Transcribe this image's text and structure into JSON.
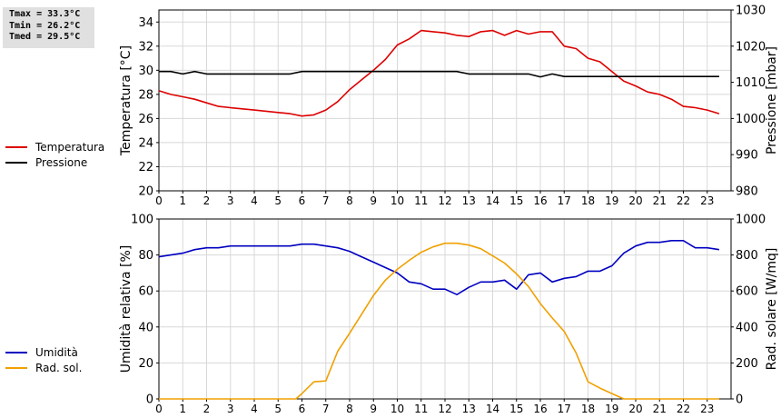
{
  "stats": {
    "tmax": "Tmax = 33.3°C",
    "tmin": "Tmin = 26.2°C",
    "tmed": "Tmed = 29.5°C"
  },
  "legend_top": [
    {
      "label": "Temperatura",
      "color": "#dd0000"
    },
    {
      "label": "Pressione",
      "color": "#000000"
    }
  ],
  "legend_bottom": [
    {
      "label": "Umidità",
      "color": "#0000c0"
    },
    {
      "label": "Rad. sol.",
      "color": "#f0a000"
    }
  ],
  "chart_data": [
    {
      "type": "line",
      "ylabel": "Temperatura [°C]",
      "y2label": "Pressione [mbar]",
      "xlim": [
        0,
        24
      ],
      "xticks": [
        0,
        1,
        2,
        3,
        4,
        5,
        6,
        7,
        8,
        9,
        10,
        11,
        12,
        13,
        14,
        15,
        16,
        17,
        18,
        19,
        20,
        21,
        22,
        23
      ],
      "ylim": [
        20,
        35
      ],
      "yticks": [
        20,
        22,
        24,
        26,
        28,
        30,
        32,
        34
      ],
      "y2lim": [
        980,
        1030
      ],
      "y2ticks": [
        980,
        990,
        1000,
        1010,
        1020,
        1030
      ],
      "grid": true,
      "series": [
        {
          "name": "Temperatura",
          "axis": "left",
          "color": "#dd0000",
          "x": [
            0,
            0.5,
            1,
            1.5,
            2,
            2.5,
            3,
            3.5,
            4,
            4.5,
            5,
            5.5,
            6,
            6.5,
            7,
            7.5,
            8,
            8.5,
            9,
            9.5,
            10,
            10.5,
            11,
            11.5,
            12,
            12.5,
            13,
            13.5,
            14,
            14.5,
            15,
            15.5,
            16,
            16.5,
            17,
            17.5,
            18,
            18.5,
            19,
            19.5,
            20,
            20.5,
            21,
            21.5,
            22,
            22.5,
            23,
            23.5
          ],
          "y": [
            28.3,
            28.0,
            27.8,
            27.6,
            27.3,
            27.0,
            26.9,
            26.8,
            26.7,
            26.6,
            26.5,
            26.4,
            26.2,
            26.3,
            26.7,
            27.4,
            28.4,
            29.2,
            30.0,
            30.9,
            32.1,
            32.6,
            33.3,
            33.2,
            33.1,
            32.9,
            32.8,
            33.2,
            33.3,
            32.9,
            33.3,
            33.0,
            33.2,
            33.2,
            32.0,
            31.8,
            31.0,
            30.7,
            29.9,
            29.1,
            28.7,
            28.2,
            28.0,
            27.6,
            27.0,
            26.9,
            26.7,
            26.4
          ]
        },
        {
          "name": "Pressione",
          "axis": "right",
          "color": "#000000",
          "x": [
            0,
            0.5,
            1,
            1.5,
            2,
            2.5,
            3,
            3.5,
            4,
            4.5,
            5,
            5.5,
            6,
            6.5,
            7,
            7.5,
            8,
            8.5,
            9,
            9.5,
            10,
            10.5,
            11,
            11.5,
            12,
            12.5,
            13,
            13.5,
            14,
            14.5,
            15,
            15.5,
            16,
            16.5,
            17,
            17.5,
            18,
            18.5,
            19,
            19.5,
            20,
            20.5,
            21,
            21.5,
            22,
            22.5,
            23,
            23.5
          ],
          "y": [
            1013,
            1013,
            1012.3,
            1013,
            1012.3,
            1012.3,
            1012.3,
            1012.3,
            1012.3,
            1012.3,
            1012.3,
            1012.3,
            1013,
            1013,
            1013,
            1013,
            1013,
            1013,
            1013,
            1013,
            1013,
            1013,
            1013,
            1013,
            1013,
            1013,
            1012.3,
            1012.3,
            1012.3,
            1012.3,
            1012.3,
            1012.3,
            1011.5,
            1012.3,
            1011.6,
            1011.6,
            1011.6,
            1011.6,
            1011.6,
            1011.6,
            1011.6,
            1011.6,
            1011.6,
            1011.6,
            1011.6,
            1011.6,
            1011.6,
            1011.6
          ]
        }
      ]
    },
    {
      "type": "line",
      "ylabel": "Umidità relativa [%]",
      "y2label": "Rad. solare [W/mq]",
      "xlim": [
        0,
        24
      ],
      "xticks": [
        0,
        1,
        2,
        3,
        4,
        5,
        6,
        7,
        8,
        9,
        10,
        11,
        12,
        13,
        14,
        15,
        16,
        17,
        18,
        19,
        20,
        21,
        22,
        23
      ],
      "ylim": [
        0,
        100
      ],
      "yticks": [
        0,
        20,
        40,
        60,
        80,
        100
      ],
      "y2lim": [
        0,
        1000
      ],
      "y2ticks": [
        0,
        200,
        400,
        600,
        800,
        1000
      ],
      "grid": true,
      "series": [
        {
          "name": "Umidità",
          "axis": "left",
          "color": "#0000c0",
          "x": [
            0,
            0.5,
            1,
            1.5,
            2,
            2.5,
            3,
            3.5,
            4,
            4.5,
            5,
            5.5,
            6,
            6.5,
            7,
            7.5,
            8,
            8.5,
            9,
            9.5,
            10,
            10.5,
            11,
            11.5,
            12,
            12.5,
            13,
            13.5,
            14,
            14.5,
            15,
            15.5,
            16,
            16.5,
            17,
            17.5,
            18,
            18.5,
            19,
            19.5,
            20,
            20.5,
            21,
            21.5,
            22,
            22.5,
            23,
            23.5
          ],
          "y": [
            79,
            80,
            81,
            83,
            84,
            84,
            85,
            85,
            85,
            85,
            85,
            85,
            86,
            86,
            85,
            84,
            82,
            79,
            76,
            73,
            70,
            65,
            64,
            61,
            61,
            58,
            62,
            65,
            65,
            66,
            61,
            69,
            70,
            65,
            67,
            68,
            71,
            71,
            74,
            81,
            85,
            87,
            87,
            88,
            88,
            84,
            84,
            83
          ]
        },
        {
          "name": "Rad. sol.",
          "axis": "right",
          "color": "#f0a000",
          "x": [
            0,
            0.5,
            1,
            1.5,
            2,
            2.5,
            3,
            3.5,
            4,
            4.5,
            5,
            5.5,
            5.75,
            6,
            6.5,
            7,
            7.5,
            8,
            8.5,
            9,
            9.5,
            10,
            10.5,
            11,
            11.5,
            12,
            12.5,
            13,
            13.5,
            14,
            14.5,
            15,
            15.5,
            16,
            16.5,
            17,
            17.5,
            18,
            18.5,
            19,
            19.5,
            20,
            20.5,
            21,
            21.5,
            22,
            22.5,
            23,
            23.5
          ],
          "y": [
            0,
            0,
            0,
            0,
            0,
            0,
            0,
            0,
            0,
            0,
            0,
            0,
            0,
            30,
            95,
            100,
            265,
            365,
            470,
            575,
            660,
            720,
            770,
            815,
            845,
            865,
            865,
            855,
            835,
            795,
            755,
            695,
            625,
            530,
            450,
            375,
            255,
            95,
            60,
            30,
            0,
            0,
            0,
            0,
            0,
            0,
            0,
            0,
            0
          ]
        }
      ]
    }
  ]
}
